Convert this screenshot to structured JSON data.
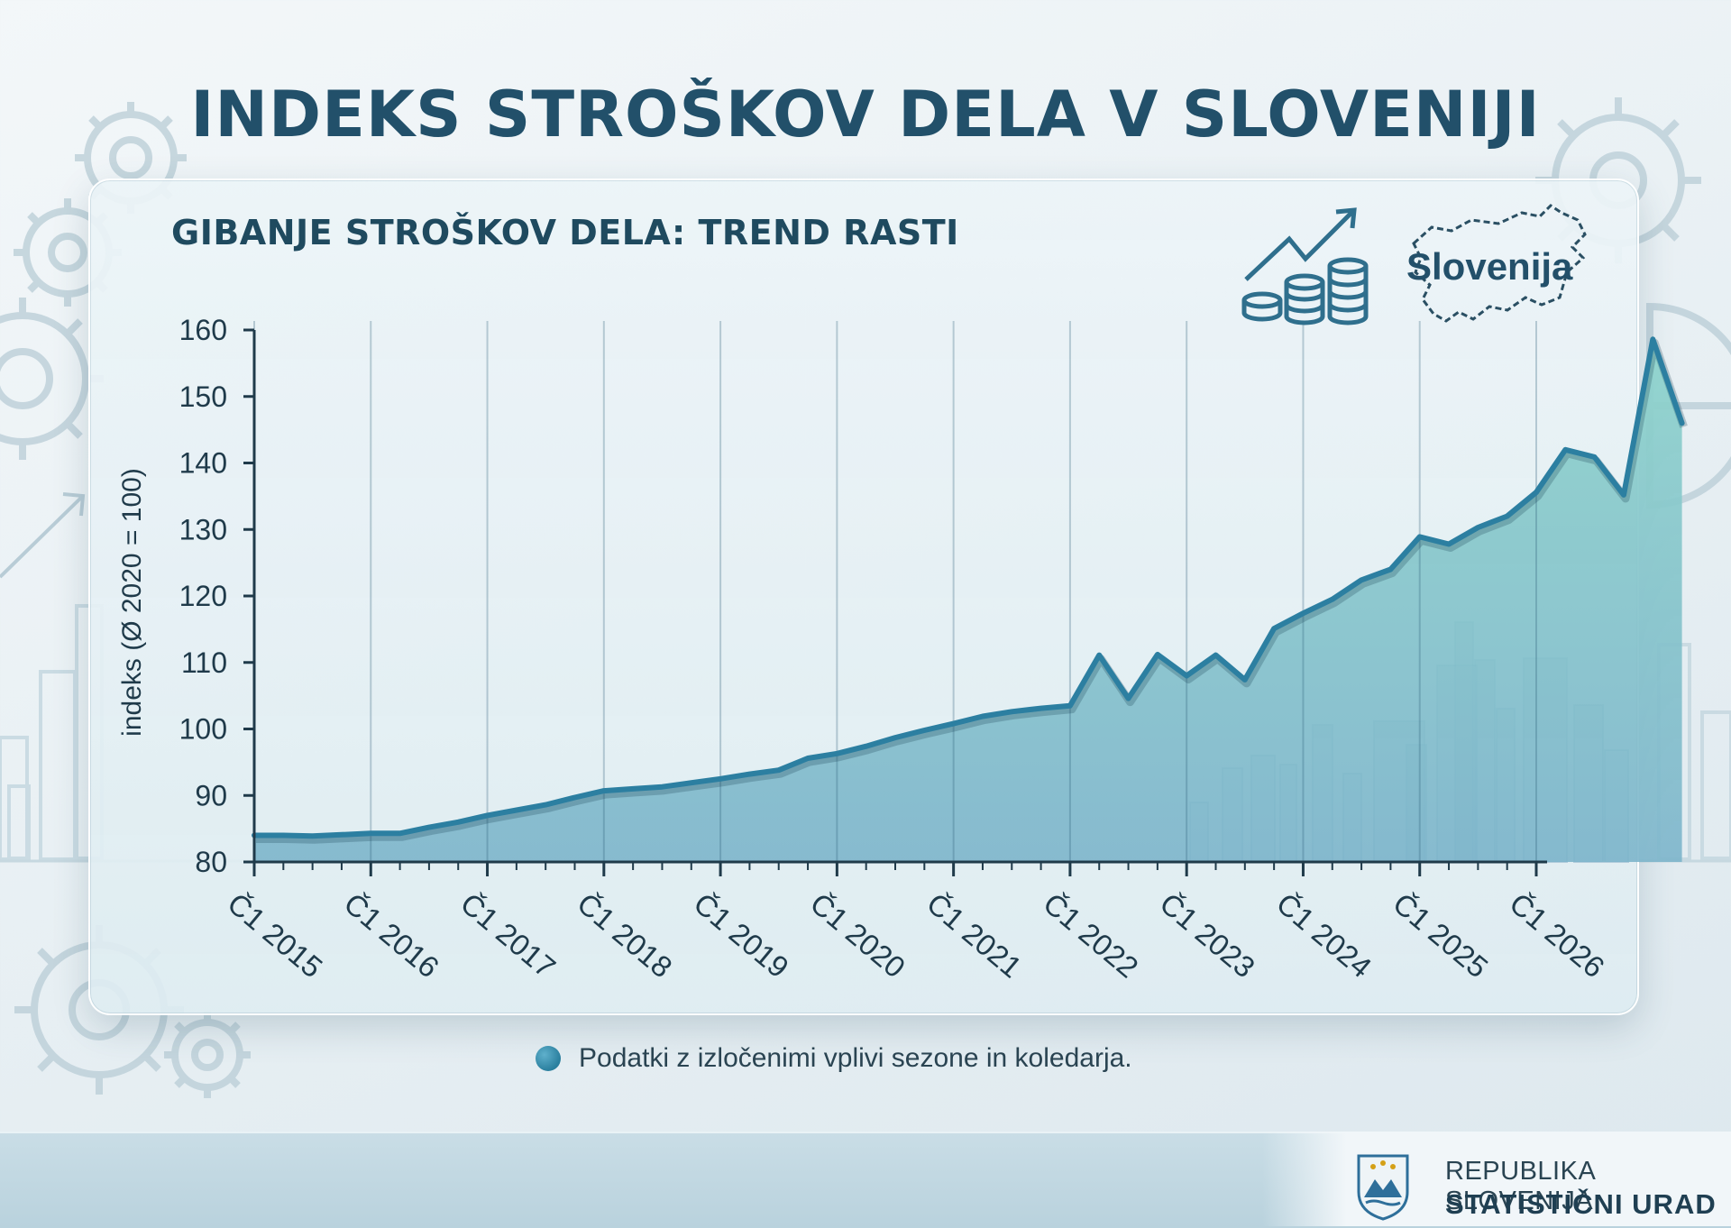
{
  "title": "INDEKS STROŠKOV DELA V SLOVENIJI",
  "icons": {
    "growth": "growth-coins-icon",
    "map": "slovenia-map-icon",
    "coat_of_arms": "slovenia-coat-of-arms-icon",
    "decor": "gear-icon"
  },
  "colors": {
    "title": "#22506a",
    "line": "#2c7fa1",
    "area_top": "#8fd3cc",
    "area_bottom": "#7db5cb",
    "axis": "#1f3a4a"
  },
  "chart_data": {
    "type": "area",
    "title": "GIBANJE STROŠKOV DELA: TREND RASTI",
    "xlabel": "",
    "ylabel": "indeks (Ø 2020 = 100)",
    "ylim": [
      80,
      160
    ],
    "yticks": [
      80,
      90,
      100,
      110,
      120,
      130,
      140,
      150,
      160
    ],
    "xticks": [
      "Č1 2015",
      "Č1 2016",
      "Č1 2017",
      "Č1 2018",
      "Č1 2019",
      "Č1 2020",
      "Č1 2021",
      "Č1 2022",
      "Č1 2023",
      "Č1 2024",
      "Č1 2025",
      "Č1 2026"
    ],
    "x_start": 2015.0,
    "x_step": 0.25,
    "x_range": [
      2015.0,
      2026.0
    ],
    "grid": "vertical lines at year ticks",
    "legend_position": "bottom",
    "series": [
      {
        "values": [
          84.0,
          84.0,
          83.9,
          84.1,
          84.3,
          84.3,
          85.2,
          86.0,
          87.0,
          87.8,
          88.6,
          89.7,
          90.7,
          91.0,
          91.3,
          91.9,
          92.5,
          93.2,
          93.8,
          95.6,
          96.3,
          97.4,
          98.7,
          99.8,
          100.8,
          101.9,
          102.6,
          103.1,
          103.5,
          111.1,
          104.6,
          111.2,
          108.0,
          111.1,
          107.4,
          115.1,
          117.4,
          119.5,
          122.4,
          124.0,
          128.9,
          127.8,
          130.3,
          132.0,
          135.6,
          142.0,
          140.9,
          135.2,
          158.6,
          146.0
        ]
      }
    ]
  },
  "country_label": "Slovenija",
  "legend": {
    "label": "Podatki z izločenimi vplivi sezone in koledarja."
  },
  "footer": {
    "org_line1": "REPUBLIKA SLOVENIJA",
    "org_line2": "STATISTIČNI URAD"
  }
}
